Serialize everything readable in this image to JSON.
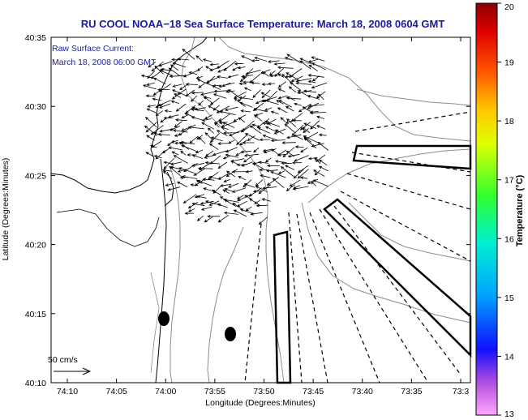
{
  "title": "RU COOL  NOAA−18  Sea Surface Temperature:  March 18, 2008 0604 GMT",
  "inset": {
    "line1": "Raw Surface Current:",
    "line2": "March 18, 2008 06:00 GMT"
  },
  "axes": {
    "xlabel": "Longitude (Degrees:Minutes)",
    "ylabel": "Latitude (Degrees:Minutes)",
    "xticks": [
      "74:10",
      "74:05",
      "74:00",
      "73:55",
      "73:50",
      "73:45",
      "73:40",
      "73:35",
      "73:3"
    ],
    "yticks": [
      "40:35",
      "40:30",
      "40:25",
      "40:20",
      "40:15",
      "40:10"
    ]
  },
  "colorbar": {
    "label": "Temperature (°C)",
    "ticks": [
      "20",
      "19",
      "18",
      "17",
      "16",
      "15",
      "14",
      "13"
    ]
  },
  "scale_label": "50 cm/s"
}
